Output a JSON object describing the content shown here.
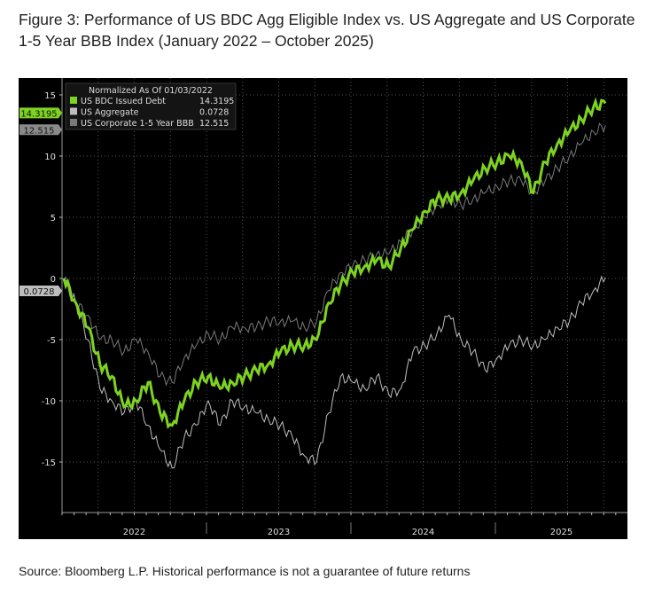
{
  "title": "Figure 3: Performance of US BDC Agg Eligible Index vs. US Aggregate and US Corporate 1-5 Year BBB Index (January 2022 – October 2025)",
  "source": "Source: Bloomberg L.P. Historical performance is not a guarantee of future returns",
  "chart_data": {
    "type": "line",
    "title": "",
    "legend_title": "Normalized As Of 01/03/2022",
    "legend_placement": "top-left",
    "grid": true,
    "background": "#000000",
    "ylim": [
      -19,
      16
    ],
    "yticks": [
      15,
      10,
      5,
      0,
      -5,
      -10,
      -15
    ],
    "ytick_labels": [
      "15",
      "10",
      "5",
      "0",
      "-5",
      "-10",
      "-15"
    ],
    "xtick_labels": [
      "2022",
      "2023",
      "2024",
      "2025"
    ],
    "dates": [
      "2022-01",
      "2022-02",
      "2022-03",
      "2022-04",
      "2022-05",
      "2022-06",
      "2022-07",
      "2022-08",
      "2022-09",
      "2022-10",
      "2022-11",
      "2022-12",
      "2023-01",
      "2023-02",
      "2023-03",
      "2023-04",
      "2023-05",
      "2023-06",
      "2023-07",
      "2023-08",
      "2023-09",
      "2023-10",
      "2023-11",
      "2023-12",
      "2024-01",
      "2024-02",
      "2024-03",
      "2024-04",
      "2024-05",
      "2024-06",
      "2024-07",
      "2024-08",
      "2024-09",
      "2024-10",
      "2024-11",
      "2024-12",
      "2025-01",
      "2025-02",
      "2025-03",
      "2025-04",
      "2025-05",
      "2025-06",
      "2025-07",
      "2025-08",
      "2025-09",
      "2025-10"
    ],
    "series": [
      {
        "name": "US BDC Issued Debt",
        "last": "14.3195",
        "color": "#7ed321",
        "values": [
          0,
          -2,
          -4,
          -7,
          -8,
          -10.5,
          -10,
          -8.5,
          -11,
          -12,
          -10,
          -8.5,
          -8,
          -9,
          -8.5,
          -8,
          -7.5,
          -7,
          -6,
          -5.5,
          -5.5,
          -5,
          -2,
          -0.5,
          0.5,
          1,
          1.5,
          1,
          2.5,
          4,
          5.5,
          6.5,
          6.5,
          7,
          8,
          9,
          9.5,
          10,
          9.5,
          7,
          9.5,
          11,
          12,
          13,
          14,
          14.3195
        ]
      },
      {
        "name": "US Aggregate",
        "last": "0.0728",
        "color": "#bdbdbd",
        "values": [
          0,
          -2,
          -5,
          -9,
          -10,
          -11,
          -10,
          -12,
          -14,
          -15.5,
          -13,
          -12,
          -10,
          -12,
          -10,
          -10.5,
          -11,
          -11.5,
          -12,
          -13,
          -14.5,
          -15,
          -11,
          -8,
          -8.5,
          -9,
          -8,
          -9.5,
          -9,
          -6,
          -5.5,
          -4.5,
          -3,
          -5,
          -6,
          -7.5,
          -6.5,
          -5.5,
          -5,
          -5.5,
          -5,
          -4,
          -3.5,
          -2,
          -1,
          0.0728
        ]
      },
      {
        "name": "US Corporate 1-5 Year BBB",
        "last": "12.515",
        "color": "#7a7a7a",
        "values": [
          0,
          -2,
          -3,
          -5,
          -5,
          -6,
          -5,
          -6,
          -8,
          -8.5,
          -6.5,
          -5.5,
          -4.5,
          -5,
          -4,
          -4,
          -4,
          -3.5,
          -3.5,
          -3.5,
          -4,
          -3.5,
          -1,
          0.5,
          1,
          1.5,
          2,
          2,
          3,
          4,
          5,
          6,
          6.5,
          6,
          6.5,
          7,
          7.5,
          8,
          8,
          7,
          8,
          9,
          10,
          11,
          12,
          12.515
        ]
      }
    ]
  }
}
